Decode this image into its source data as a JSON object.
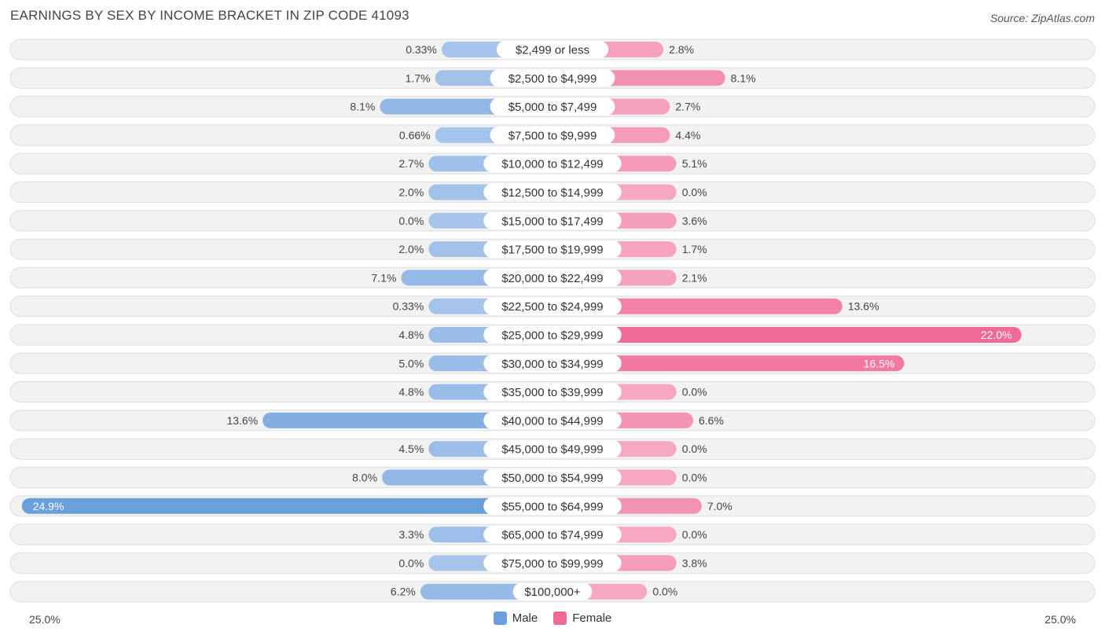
{
  "header": {
    "title": "EARNINGS BY SEX BY INCOME BRACKET IN ZIP CODE 41093",
    "source": "Source: ZipAtlas.com"
  },
  "axis": {
    "left_label": "25.0%",
    "right_label": "25.0%"
  },
  "legend": {
    "male": "Male",
    "female": "Female"
  },
  "colors": {
    "male_light": "#a7c5eb",
    "male_dark": "#6a9fdb",
    "female_light": "#f6a8c1",
    "female_dark": "#f06896",
    "row_bg": "#f2f2f2",
    "row_border": "#dddddd"
  },
  "chart_data": {
    "type": "bar",
    "orientation": "horizontal-diverging",
    "title": "EARNINGS BY SEX BY INCOME BRACKET IN ZIP CODE 41093",
    "xlim": [
      -25.0,
      25.0
    ],
    "categories": [
      "$2,499 or less",
      "$2,500 to $4,999",
      "$5,000 to $7,499",
      "$7,500 to $9,999",
      "$10,000 to $12,499",
      "$12,500 to $14,999",
      "$15,000 to $17,499",
      "$17,500 to $19,999",
      "$20,000 to $22,499",
      "$22,500 to $24,999",
      "$25,000 to $29,999",
      "$30,000 to $34,999",
      "$35,000 to $39,999",
      "$40,000 to $44,999",
      "$45,000 to $49,999",
      "$50,000 to $54,999",
      "$55,000 to $64,999",
      "$65,000 to $74,999",
      "$75,000 to $99,999",
      "$100,000+"
    ],
    "series": [
      {
        "name": "Male",
        "values": [
          0.33,
          1.7,
          8.1,
          0.66,
          2.7,
          2.0,
          0.0,
          2.0,
          7.1,
          0.33,
          4.8,
          5.0,
          4.8,
          13.6,
          4.5,
          8.0,
          24.9,
          3.3,
          0.0,
          6.2
        ],
        "labels": [
          "0.33%",
          "1.7%",
          "8.1%",
          "0.66%",
          "2.7%",
          "2.0%",
          "0.0%",
          "2.0%",
          "7.1%",
          "0.33%",
          "4.8%",
          "5.0%",
          "4.8%",
          "13.6%",
          "4.5%",
          "8.0%",
          "24.9%",
          "3.3%",
          "0.0%",
          "6.2%"
        ]
      },
      {
        "name": "Female",
        "values": [
          2.8,
          8.1,
          2.7,
          4.4,
          5.1,
          0.0,
          3.6,
          1.7,
          2.1,
          13.6,
          22.0,
          16.5,
          0.0,
          6.6,
          0.0,
          0.0,
          7.0,
          0.0,
          3.8,
          0.0
        ],
        "labels": [
          "2.8%",
          "8.1%",
          "2.7%",
          "4.4%",
          "5.1%",
          "0.0%",
          "3.6%",
          "1.7%",
          "2.1%",
          "13.6%",
          "22.0%",
          "16.5%",
          "0.0%",
          "6.6%",
          "0.0%",
          "0.0%",
          "7.0%",
          "0.0%",
          "3.8%",
          "0.0%"
        ]
      }
    ]
  }
}
